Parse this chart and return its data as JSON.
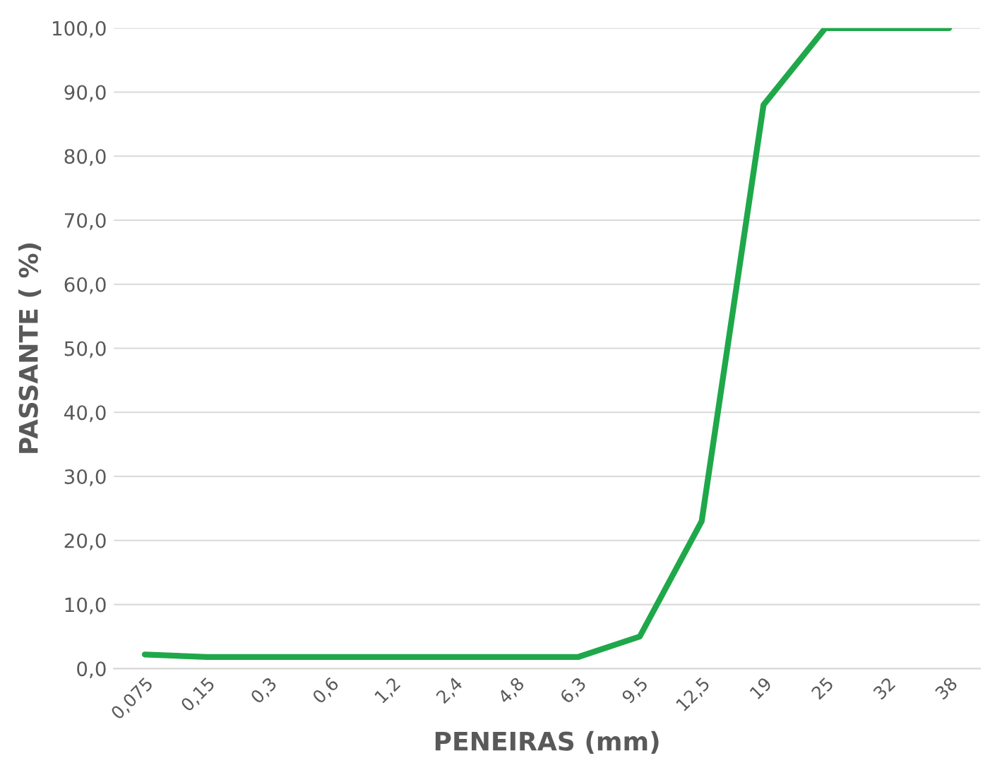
{
  "chart_data": {
    "type": "line",
    "xlabel": "PENEIRAS (mm)",
    "ylabel": "PASSANTE ( %)",
    "categories": [
      "0,075",
      "0,15",
      "0,3",
      "0,6",
      "1,2",
      "2,4",
      "4,8",
      "6,3",
      "9,5",
      "12,5",
      "19",
      "25",
      "32",
      "38"
    ],
    "series": [
      {
        "color": "#1fa84a",
        "values": [
          2.2,
          1.8,
          1.8,
          1.8,
          1.8,
          1.8,
          1.8,
          1.8,
          5.0,
          23.0,
          88.0,
          100.0,
          100.0,
          100.0
        ]
      }
    ],
    "ylim": [
      0,
      100
    ],
    "yticks": [
      {
        "value": 0,
        "label": "0,0"
      },
      {
        "value": 10,
        "label": "10,0"
      },
      {
        "value": 20,
        "label": "20,0"
      },
      {
        "value": 30,
        "label": "30,0"
      },
      {
        "value": 40,
        "label": "40,0"
      },
      {
        "value": 50,
        "label": "50,0"
      },
      {
        "value": 60,
        "label": "60,0"
      },
      {
        "value": 70,
        "label": "70,0"
      },
      {
        "value": 80,
        "label": "80,0"
      },
      {
        "value": 90,
        "label": "90,0"
      },
      {
        "value": 100,
        "label": "100,0"
      }
    ],
    "grid": "y",
    "marker": "none",
    "line_style": "solid",
    "legend": false
  }
}
